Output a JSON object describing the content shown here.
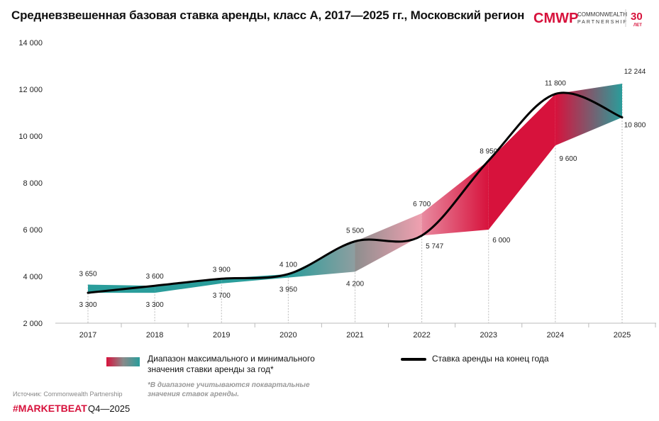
{
  "title": "Средневзвешенная базовая ставка аренды, класс А, 2017—2025 гг., Московский регион",
  "logo": {
    "brand": "CMWP",
    "line1": "COMMONWEALTH",
    "line2": "PARTNERSHIP",
    "badge": "30",
    "badge_sub": "ЛЕТ"
  },
  "colors": {
    "range_low": "#2a9d9b",
    "range_high": "#d7123c",
    "line": "#000000",
    "brand": "#d7123c"
  },
  "chart_data": {
    "type": "area",
    "categories": [
      "2017",
      "2018",
      "2019",
      "2020",
      "2021",
      "2022",
      "2023",
      "2024",
      "2025"
    ],
    "ylim": [
      2000,
      14000
    ],
    "yticks": [
      2000,
      4000,
      6000,
      8000,
      10000,
      12000,
      14000
    ],
    "ytick_labels": [
      "2 000",
      "4 000",
      "6 000",
      "8 000",
      "10 000",
      "12 000",
      "14 000"
    ],
    "grid": false,
    "legend_placement": "bottom",
    "series": [
      {
        "name": "Диапазон максимального и минимального значения ставки аренды за год*",
        "kind": "range",
        "max": [
          3650,
          3600,
          3900,
          4100,
          5500,
          6700,
          8950,
          11800,
          12244
        ],
        "min": [
          3300,
          3300,
          3700,
          3950,
          4200,
          5747,
          6000,
          9600,
          10800
        ],
        "max_labels": [
          "3 650",
          "3 600",
          "3 900",
          "4 100",
          "5 500",
          "6 700",
          "8  950",
          "11 800",
          "12 244"
        ],
        "min_labels": [
          "3 300",
          "3 300",
          "3 700",
          "3 950",
          "4 200",
          "5 747",
          "6 000",
          "9 600",
          "10 800"
        ]
      },
      {
        "name": "Ставка аренды на конец года",
        "kind": "line",
        "values": [
          3300,
          3600,
          3900,
          4100,
          5500,
          5747,
          8950,
          11800,
          10800
        ]
      }
    ]
  },
  "legend": {
    "range_label": "Диапазон максимального и минимального значения ставки аренды за год*",
    "note": "*В диапазоне учитываются поквартальные значения ставок аренды.",
    "line_label": "Ставка аренды на конец года"
  },
  "footer": {
    "source": "Источник: Commonwealth Partnership",
    "tag": "#MARKETBEAT",
    "period": "Q4—2025"
  }
}
